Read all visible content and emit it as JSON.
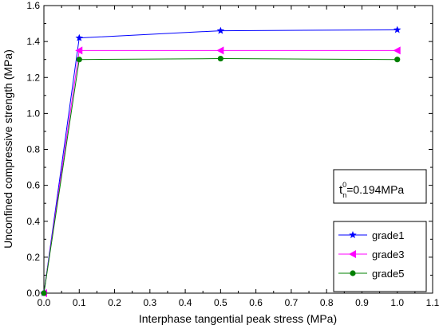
{
  "chart_data": {
    "type": "line",
    "xlabel": "Interphase tangential peak stress  (MPa)",
    "ylabel": "Unconfined compressive strength (MPa)",
    "xlim": [
      0.0,
      1.1
    ],
    "ylim": [
      0.0,
      1.6
    ],
    "xticks": [
      "0.0",
      "0.1",
      "0.2",
      "0.3",
      "0.4",
      "0.5",
      "0.6",
      "0.7",
      "0.8",
      "0.9",
      "1.0",
      "1.1"
    ],
    "yticks": [
      "0.0",
      "0.2",
      "0.4",
      "0.6",
      "0.8",
      "1.0",
      "1.2",
      "1.4",
      "1.6"
    ],
    "grid": false,
    "legend_position": "bottom-right",
    "annotation": {
      "base": "t",
      "superscript": "0",
      "subscript": "n",
      "rest": "=0.194MPa"
    },
    "x": [
      0.0,
      0.1,
      0.5,
      1.0
    ],
    "series": [
      {
        "name": "grade1",
        "values": [
          0.0,
          1.42,
          1.46,
          1.465
        ],
        "color": "#0000ff",
        "marker": "star"
      },
      {
        "name": "grade3",
        "values": [
          0.0,
          1.35,
          1.35,
          1.35
        ],
        "color": "#ff00ff",
        "marker": "triangle-left"
      },
      {
        "name": "grade5",
        "values": [
          0.0,
          1.3,
          1.305,
          1.3
        ],
        "color": "#008000",
        "marker": "circle"
      }
    ]
  }
}
